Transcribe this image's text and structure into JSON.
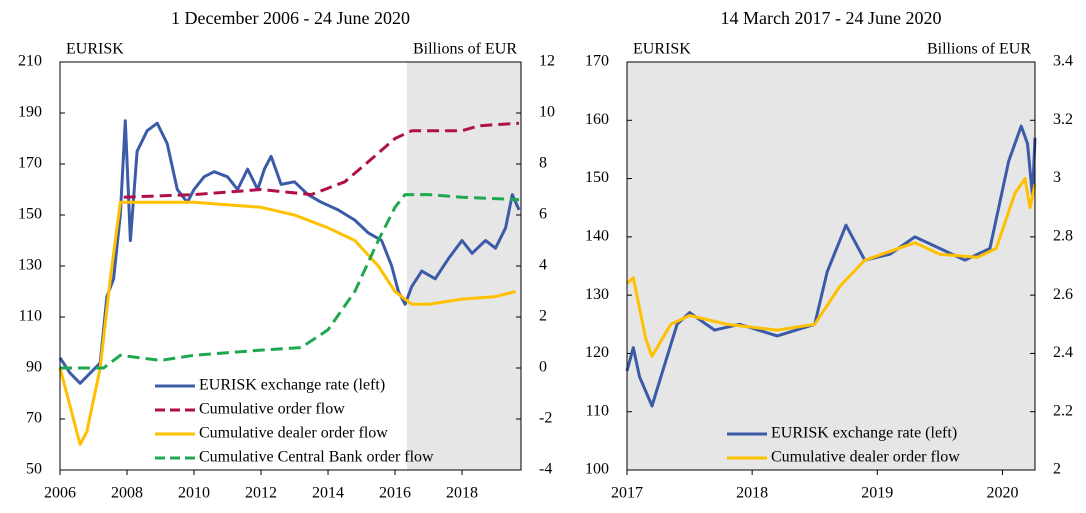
{
  "chart_data": [
    {
      "type": "line",
      "title": "1 December 2006 - 24 June 2020",
      "ylabel": "EURISK",
      "y2label": "Billions of EUR",
      "xlim": [
        2006,
        2019.76
      ],
      "xticks": [
        2006,
        2008,
        2010,
        2012,
        2014,
        2016,
        2018
      ],
      "ylim": [
        50,
        210
      ],
      "yticks": [
        50,
        70,
        90,
        110,
        130,
        150,
        170,
        190,
        210
      ],
      "y2lim": [
        -4,
        12
      ],
      "y2ticks": [
        -4,
        -2,
        0,
        2,
        4,
        6,
        8,
        10,
        12
      ],
      "shade_start": 2016.36,
      "legend_loc": "lower center",
      "series": [
        {
          "name": "EURISK exchange rate (left)",
          "color": "#3b5ba9",
          "dash": false,
          "x": [
            2006.0,
            2006.3,
            2006.6,
            2006.9,
            2007.2,
            2007.4,
            2007.6,
            2007.8,
            2007.95,
            2008.1,
            2008.3,
            2008.6,
            2008.9,
            2009.2,
            2009.5,
            2009.8,
            2010.0,
            2010.3,
            2010.6,
            2011.0,
            2011.3,
            2011.6,
            2011.9,
            2012.1,
            2012.3,
            2012.6,
            2013.0,
            2013.4,
            2013.8,
            2014.3,
            2014.8,
            2015.2,
            2015.6,
            2015.9,
            2016.1,
            2016.3,
            2016.5,
            2016.8,
            2017.2,
            2017.6,
            2018.0,
            2018.3,
            2018.7,
            2019.0,
            2019.3,
            2019.5,
            2019.7
          ],
          "values": [
            94,
            88,
            84,
            88,
            92,
            118,
            125,
            150,
            187,
            140,
            175,
            183,
            186,
            178,
            160,
            155,
            160,
            165,
            167,
            165,
            160,
            168,
            160,
            168,
            173,
            162,
            163,
            158,
            155,
            152,
            148,
            143,
            140,
            130,
            120,
            115,
            122,
            128,
            125,
            133,
            140,
            135,
            140,
            137,
            145,
            158,
            152
          ]
        },
        {
          "name": "Cumulative order flow",
          "color": "#b0104a",
          "dash": true,
          "axis": "y2",
          "x": [
            2007.9,
            2010,
            2012,
            2013.5,
            2014.5,
            2015.3,
            2016.0,
            2016.5,
            2018,
            2018.5,
            2019.7
          ],
          "values": [
            6.7,
            6.8,
            7.0,
            6.8,
            7.3,
            8.2,
            9.0,
            9.3,
            9.3,
            9.5,
            9.6
          ]
        },
        {
          "name": "Cumulative dealer order flow",
          "color": "#ffc000",
          "dash": false,
          "axis": "y2",
          "x": [
            2006,
            2006.3,
            2006.6,
            2006.8,
            2007.2,
            2007.5,
            2007.8,
            2008.5,
            2010,
            2012,
            2013,
            2014,
            2014.8,
            2015.5,
            2016,
            2016.5,
            2017,
            2018,
            2019,
            2019.6
          ],
          "values": [
            0,
            -1.5,
            -3.0,
            -2.5,
            0,
            3.5,
            6.5,
            6.5,
            6.5,
            6.3,
            6.0,
            5.5,
            5.0,
            4.0,
            3.0,
            2.5,
            2.5,
            2.7,
            2.8,
            3.0
          ]
        },
        {
          "name": "Cumulative Central Bank order flow",
          "color": "#1fa84f",
          "dash": true,
          "axis": "y2",
          "x": [
            2006,
            2007.3,
            2007.8,
            2009,
            2010,
            2012,
            2013.2,
            2014,
            2014.8,
            2015.5,
            2016,
            2016.3,
            2017,
            2018,
            2019.7
          ],
          "values": [
            0,
            0,
            0.5,
            0.3,
            0.5,
            0.7,
            0.8,
            1.5,
            3.0,
            5.0,
            6.3,
            6.8,
            6.8,
            6.7,
            6.6
          ]
        }
      ]
    },
    {
      "type": "line",
      "title": "14 March 2017 - 24 June 2020",
      "ylabel": "EURISK",
      "y2label": "Billions of EUR",
      "xlim": [
        2017,
        2020.26
      ],
      "xticks": [
        2017,
        2018,
        2019,
        2020
      ],
      "ylim": [
        100,
        170
      ],
      "yticks": [
        100,
        110,
        120,
        130,
        140,
        150,
        160,
        170
      ],
      "y2lim": [
        2,
        3.4
      ],
      "y2ticks": [
        2,
        2.2,
        2.4,
        2.6,
        2.8,
        3,
        3.2,
        3.4
      ],
      "shade_start": 2017,
      "legend_loc": "lower right",
      "series": [
        {
          "name": "EURISK exchange rate (left)",
          "color": "#3b5ba9",
          "dash": false,
          "x": [
            2017.0,
            2017.05,
            2017.1,
            2017.2,
            2017.3,
            2017.4,
            2017.5,
            2017.7,
            2017.9,
            2018.2,
            2018.5,
            2018.6,
            2018.75,
            2018.9,
            2019.1,
            2019.3,
            2019.5,
            2019.7,
            2019.9,
            2020.05,
            2020.15,
            2020.2,
            2020.24,
            2020.26
          ],
          "values": [
            117,
            121,
            116,
            111,
            118,
            125,
            127,
            124,
            125,
            123,
            125,
            134,
            142,
            136,
            137,
            140,
            138,
            136,
            138,
            153,
            159,
            156,
            147,
            157
          ]
        },
        {
          "name": "Cumulative dealer order flow",
          "color": "#ffc000",
          "dash": false,
          "axis": "y2",
          "x": [
            2017.0,
            2017.05,
            2017.15,
            2017.2,
            2017.35,
            2017.5,
            2017.8,
            2018.2,
            2018.5,
            2018.7,
            2018.9,
            2019.3,
            2019.5,
            2019.8,
            2019.95,
            2020.1,
            2020.18,
            2020.22,
            2020.26
          ],
          "values": [
            2.64,
            2.66,
            2.45,
            2.39,
            2.5,
            2.53,
            2.5,
            2.48,
            2.5,
            2.63,
            2.72,
            2.78,
            2.74,
            2.73,
            2.76,
            2.95,
            3.0,
            2.9,
            2.98
          ]
        }
      ]
    }
  ]
}
